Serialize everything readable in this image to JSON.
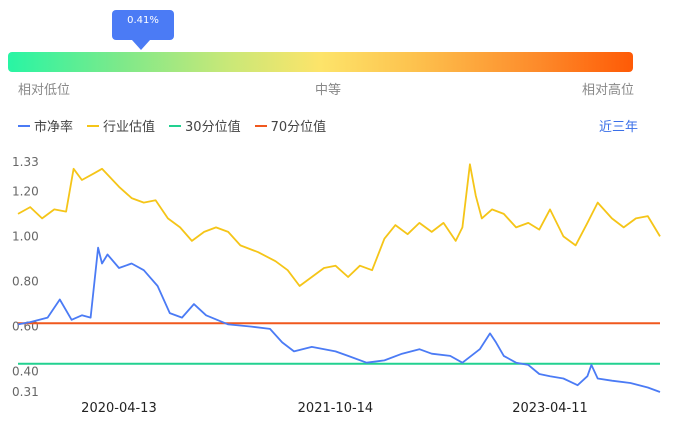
{
  "gauge": {
    "marker_value": "0.41%",
    "labels": [
      "相对低位",
      "中等",
      "相对高位"
    ],
    "colors": [
      "#28f5a4",
      "#fde46a",
      "#fe5a06"
    ]
  },
  "legend": [
    {
      "name": "市净率",
      "color": "#4b7bf5"
    },
    {
      "name": "行业估值",
      "color": "#f5c518"
    },
    {
      "name": "30分位值",
      "color": "#22d190"
    },
    {
      "name": "70分位值",
      "color": "#f0581e"
    }
  ],
  "period_label": "近三年",
  "chart_data": {
    "type": "line",
    "ylim": [
      0.31,
      1.33
    ],
    "y_ticks": [
      "1.33",
      "1.20",
      "1.00",
      "0.80",
      "0.60",
      "0.40",
      "0.31"
    ],
    "x_ticks": [
      "2020-04-13",
      "2021-10-14",
      "2023-04-11"
    ],
    "x_range": [
      "2019-08-01",
      "2024-01-15"
    ],
    "series": [
      {
        "name": "市净率",
        "color": "#4b7bf5",
        "points": [
          [
            "2019-08-01",
            0.61
          ],
          [
            "2019-09-01",
            0.62
          ],
          [
            "2019-10-15",
            0.64
          ],
          [
            "2019-11-15",
            0.72
          ],
          [
            "2019-12-15",
            0.63
          ],
          [
            "2020-01-10",
            0.65
          ],
          [
            "2020-02-01",
            0.64
          ],
          [
            "2020-02-20",
            0.95
          ],
          [
            "2020-03-01",
            0.88
          ],
          [
            "2020-03-15",
            0.92
          ],
          [
            "2020-04-13",
            0.86
          ],
          [
            "2020-05-15",
            0.88
          ],
          [
            "2020-06-15",
            0.85
          ],
          [
            "2020-07-20",
            0.78
          ],
          [
            "2020-08-20",
            0.66
          ],
          [
            "2020-09-20",
            0.64
          ],
          [
            "2020-10-20",
            0.7
          ],
          [
            "2020-11-20",
            0.65
          ],
          [
            "2021-01-15",
            0.61
          ],
          [
            "2021-03-15",
            0.6
          ],
          [
            "2021-05-01",
            0.59
          ],
          [
            "2021-06-01",
            0.53
          ],
          [
            "2021-07-01",
            0.49
          ],
          [
            "2021-08-15",
            0.51
          ],
          [
            "2021-10-14",
            0.49
          ],
          [
            "2021-11-15",
            0.47
          ],
          [
            "2022-01-01",
            0.44
          ],
          [
            "2022-02-15",
            0.45
          ],
          [
            "2022-04-01",
            0.48
          ],
          [
            "2022-05-15",
            0.5
          ],
          [
            "2022-06-15",
            0.48
          ],
          [
            "2022-08-01",
            0.47
          ],
          [
            "2022-09-01",
            0.44
          ],
          [
            "2022-10-15",
            0.5
          ],
          [
            "2022-11-10",
            0.57
          ],
          [
            "2022-11-25",
            0.53
          ],
          [
            "2022-12-15",
            0.47
          ],
          [
            "2023-01-15",
            0.44
          ],
          [
            "2023-02-15",
            0.43
          ],
          [
            "2023-03-15",
            0.39
          ],
          [
            "2023-04-11",
            0.38
          ],
          [
            "2023-05-15",
            0.37
          ],
          [
            "2023-06-20",
            0.34
          ],
          [
            "2023-07-15",
            0.38
          ],
          [
            "2023-07-25",
            0.43
          ],
          [
            "2023-08-10",
            0.37
          ],
          [
            "2023-09-15",
            0.36
          ],
          [
            "2023-11-01",
            0.35
          ],
          [
            "2023-12-15",
            0.33
          ],
          [
            "2024-01-15",
            0.31
          ]
        ]
      },
      {
        "name": "行业估值",
        "color": "#f5c518",
        "points": [
          [
            "2019-08-01",
            1.1
          ],
          [
            "2019-09-01",
            1.13
          ],
          [
            "2019-10-01",
            1.08
          ],
          [
            "2019-11-01",
            1.12
          ],
          [
            "2019-12-01",
            1.11
          ],
          [
            "2019-12-20",
            1.3
          ],
          [
            "2020-01-10",
            1.25
          ],
          [
            "2020-02-10",
            1.28
          ],
          [
            "2020-03-01",
            1.3
          ],
          [
            "2020-04-13",
            1.22
          ],
          [
            "2020-05-15",
            1.17
          ],
          [
            "2020-06-15",
            1.15
          ],
          [
            "2020-07-15",
            1.16
          ],
          [
            "2020-08-15",
            1.08
          ],
          [
            "2020-09-15",
            1.04
          ],
          [
            "2020-10-15",
            0.98
          ],
          [
            "2020-11-15",
            1.02
          ],
          [
            "2020-12-15",
            1.04
          ],
          [
            "2021-01-15",
            1.02
          ],
          [
            "2021-02-15",
            0.96
          ],
          [
            "2021-04-01",
            0.93
          ],
          [
            "2021-05-15",
            0.89
          ],
          [
            "2021-06-15",
            0.85
          ],
          [
            "2021-07-15",
            0.78
          ],
          [
            "2021-08-15",
            0.82
          ],
          [
            "2021-09-15",
            0.86
          ],
          [
            "2021-10-14",
            0.87
          ],
          [
            "2021-11-15",
            0.82
          ],
          [
            "2021-12-15",
            0.87
          ],
          [
            "2022-01-15",
            0.85
          ],
          [
            "2022-02-15",
            0.99
          ],
          [
            "2022-03-15",
            1.05
          ],
          [
            "2022-04-15",
            1.01
          ],
          [
            "2022-05-15",
            1.06
          ],
          [
            "2022-06-15",
            1.02
          ],
          [
            "2022-07-15",
            1.06
          ],
          [
            "2022-08-15",
            0.98
          ],
          [
            "2022-09-01",
            1.04
          ],
          [
            "2022-09-20",
            1.32
          ],
          [
            "2022-10-05",
            1.18
          ],
          [
            "2022-10-20",
            1.08
          ],
          [
            "2022-11-15",
            1.12
          ],
          [
            "2022-12-15",
            1.1
          ],
          [
            "2023-01-15",
            1.04
          ],
          [
            "2023-02-15",
            1.06
          ],
          [
            "2023-03-15",
            1.03
          ],
          [
            "2023-04-11",
            1.12
          ],
          [
            "2023-05-15",
            1.0
          ],
          [
            "2023-06-15",
            0.96
          ],
          [
            "2023-07-15",
            1.06
          ],
          [
            "2023-08-10",
            1.15
          ],
          [
            "2023-09-15",
            1.08
          ],
          [
            "2023-10-15",
            1.04
          ],
          [
            "2023-11-15",
            1.08
          ],
          [
            "2023-12-15",
            1.09
          ],
          [
            "2024-01-15",
            1.0
          ]
        ]
      },
      {
        "name": "30分位值",
        "color": "#22d190",
        "points": [
          [
            "2019-08-01",
            0.435
          ],
          [
            "2024-01-15",
            0.435
          ]
        ]
      },
      {
        "name": "70分位值",
        "color": "#f0581e",
        "points": [
          [
            "2019-08-01",
            0.615
          ],
          [
            "2024-01-15",
            0.615
          ]
        ]
      }
    ]
  }
}
